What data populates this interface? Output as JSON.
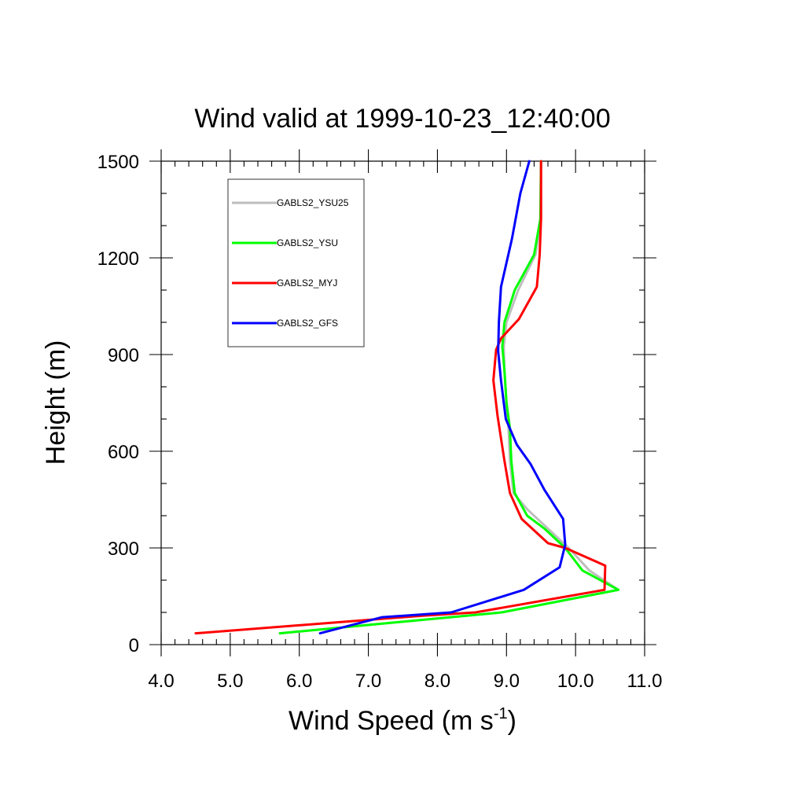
{
  "chart_data": {
    "type": "line",
    "title": "Wind valid at 1999-10-23_12:40:00",
    "xlabel": "Wind Speed (m s",
    "xlabel_sup": "-1",
    "xlabel_close": ")",
    "ylabel": "Height (m)",
    "xlim": [
      4.0,
      11.0
    ],
    "ylim": [
      0,
      1500
    ],
    "xticks": [
      4.0,
      5.0,
      6.0,
      7.0,
      8.0,
      9.0,
      10.0,
      11.0
    ],
    "xtick_labels": [
      "4.0",
      "5.0",
      "6.0",
      "7.0",
      "8.0",
      "9.0",
      "10.0",
      "11.0"
    ],
    "yticks": [
      0,
      300,
      600,
      900,
      1200,
      1500
    ],
    "ytick_labels": [
      "0",
      "300",
      "600",
      "900",
      "1200",
      "1500"
    ],
    "grid": false,
    "legend_position": "top-left",
    "series": [
      {
        "name": "GABLS2_YSU25",
        "color": "#bebebe",
        "x": [
          5.72,
          8.93,
          10.62,
          10.2,
          9.9,
          9.55,
          9.3,
          9.1,
          9.05,
          9.03,
          9.0,
          8.97,
          8.96,
          9.0,
          9.17,
          9.42,
          9.5,
          9.5
        ],
        "y": [
          35,
          100,
          170,
          230,
          300,
          370,
          420,
          470,
          570,
          670,
          750,
          850,
          925,
          1000,
          1100,
          1210,
          1320,
          1500
        ]
      },
      {
        "name": "GABLS2_YSU",
        "color": "#00ff00",
        "x": [
          5.72,
          8.93,
          10.62,
          10.1,
          9.85,
          9.55,
          9.3,
          9.12,
          9.07,
          9.05,
          9.0,
          8.97,
          8.94,
          8.97,
          9.12,
          9.4,
          9.49,
          9.5
        ],
        "y": [
          35,
          100,
          170,
          230,
          300,
          360,
          400,
          470,
          570,
          670,
          750,
          850,
          925,
          1000,
          1100,
          1210,
          1320,
          1500
        ]
      },
      {
        "name": "GABLS2_MYJ",
        "color": "#ff0000",
        "x": [
          4.5,
          7.8,
          8.55,
          10.42,
          10.43,
          9.85,
          9.6,
          9.22,
          9.05,
          8.97,
          8.87,
          8.81,
          8.85,
          8.92,
          9.18,
          9.44,
          9.48,
          9.5,
          9.5
        ],
        "y": [
          35,
          90,
          100,
          170,
          245,
          300,
          315,
          390,
          470,
          570,
          710,
          820,
          915,
          950,
          1010,
          1110,
          1210,
          1320,
          1500
        ]
      },
      {
        "name": "GABLS2_GFS",
        "color": "#0000ff",
        "x": [
          6.3,
          7.2,
          8.2,
          9.25,
          9.77,
          9.85,
          9.82,
          9.55,
          9.35,
          9.15,
          8.99,
          8.92,
          8.88,
          8.89,
          8.92,
          9.08,
          9.2,
          9.33
        ],
        "y": [
          35,
          85,
          100,
          170,
          240,
          310,
          390,
          480,
          560,
          620,
          700,
          820,
          910,
          1000,
          1110,
          1260,
          1400,
          1500
        ]
      }
    ]
  }
}
